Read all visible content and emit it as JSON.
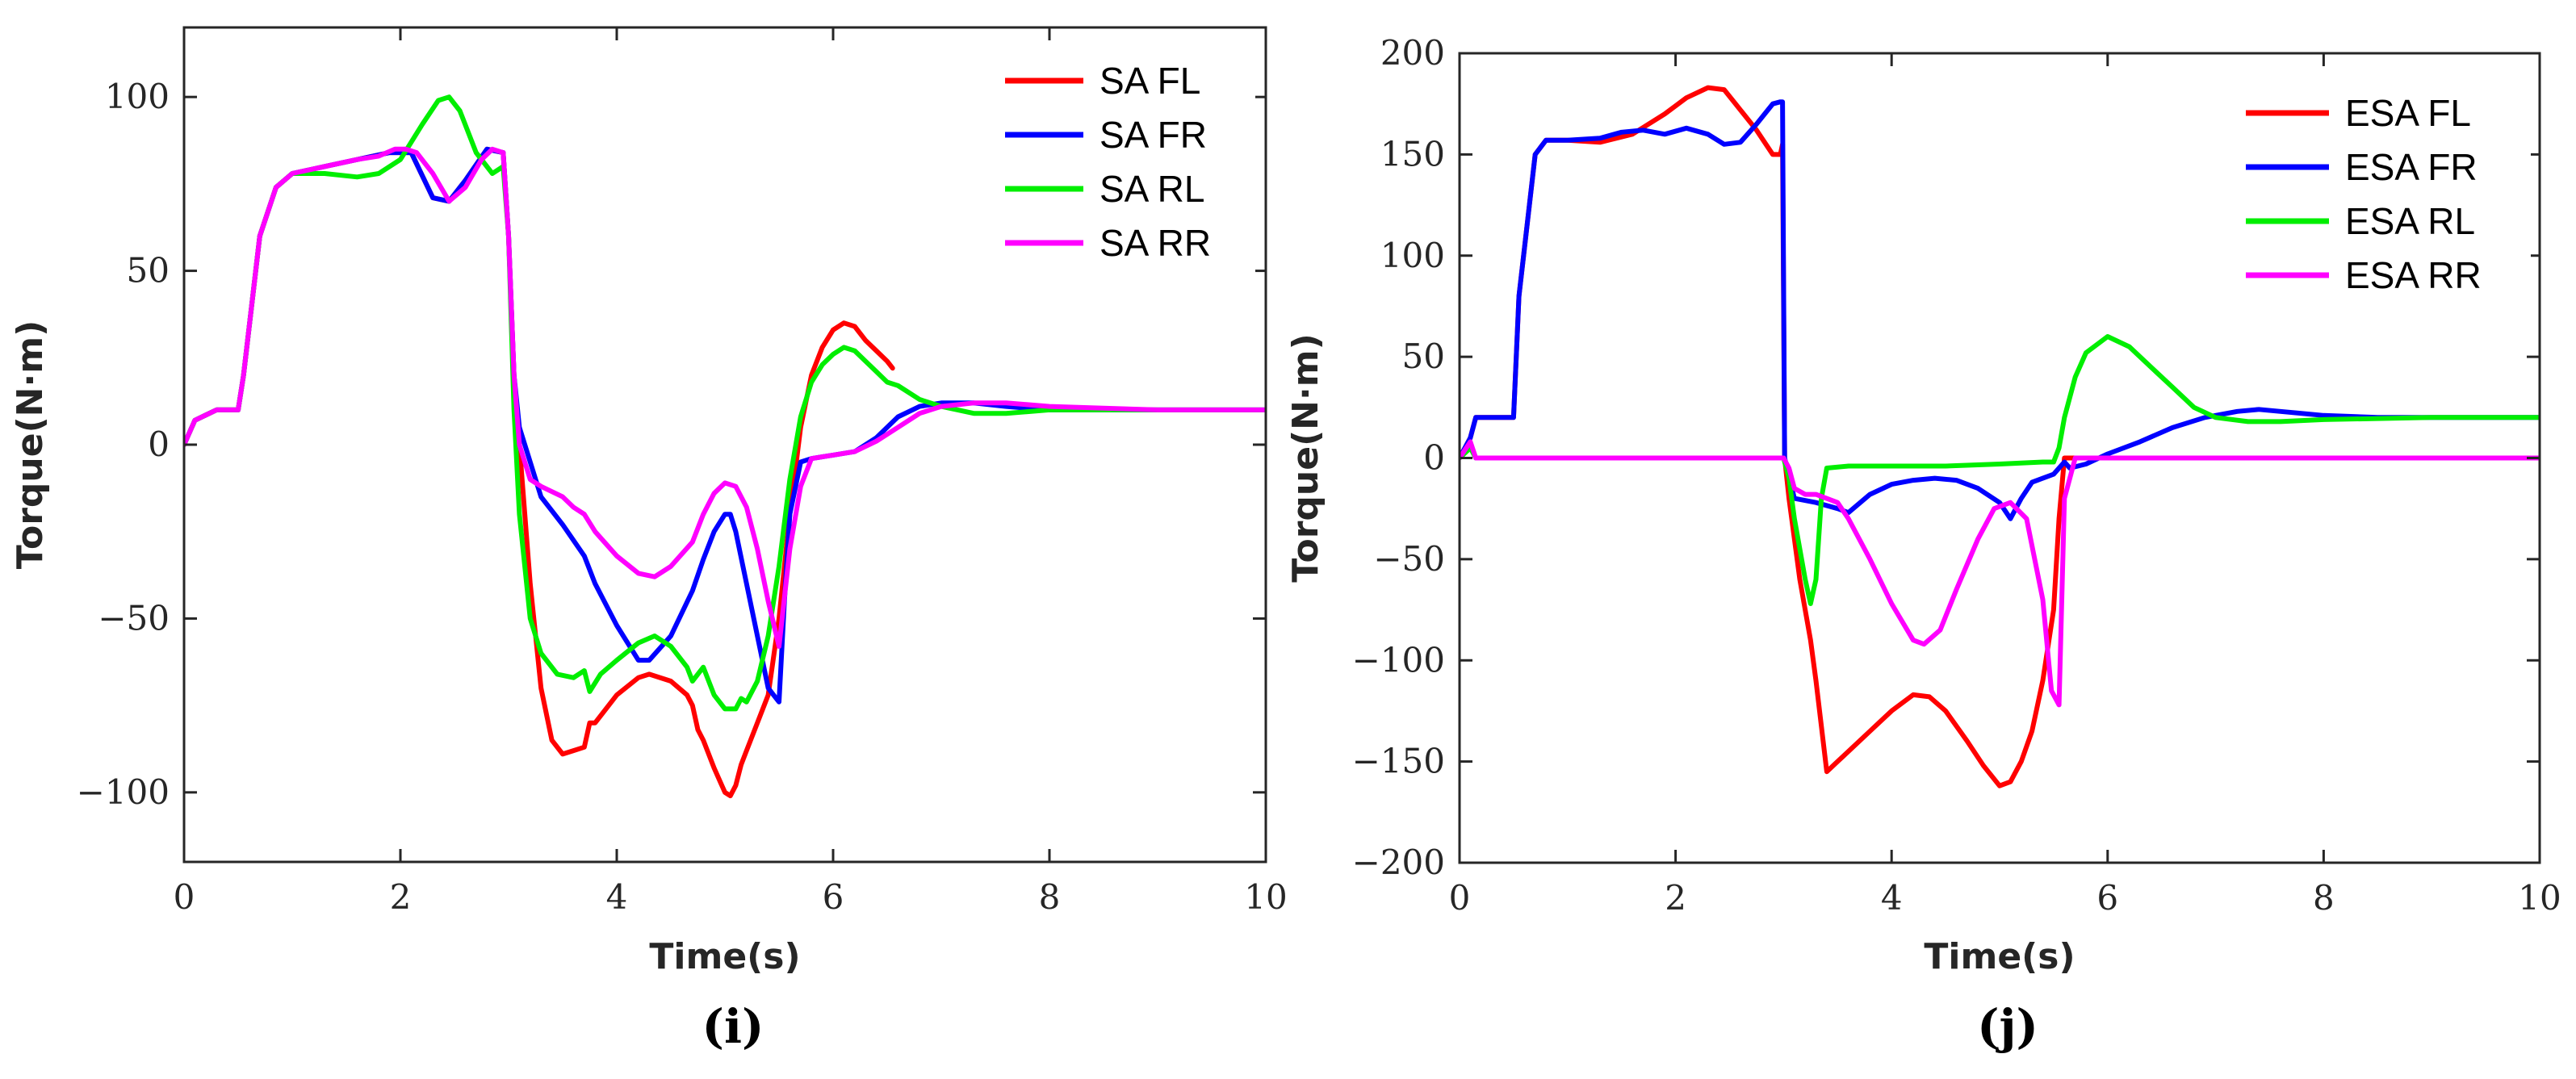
{
  "chart_data": [
    {
      "type": "line",
      "panel_label": "(i)",
      "xlabel": "Time(s)",
      "ylabel": "Torque(N·m)",
      "xlim": [
        0,
        10
      ],
      "ylim": [
        -120,
        120
      ],
      "xticks": [
        0,
        2,
        4,
        6,
        8,
        10
      ],
      "xtick_labels": [
        "0",
        "2",
        "4",
        "6",
        "8",
        "10"
      ],
      "yticks": [
        -100,
        -50,
        0,
        50,
        100
      ],
      "ytick_labels": [
        "−100",
        "−50",
        "0",
        "50",
        "100"
      ],
      "grid": false,
      "legend_position": "top-right",
      "series": [
        {
          "name": "SA FL",
          "color": "#ff0000",
          "x": [
            0,
            0.1,
            0.3,
            0.5,
            0.55,
            0.7,
            0.85,
            1.0,
            1.3,
            1.6,
            1.9,
            2.1,
            2.3,
            2.45,
            2.6,
            2.8,
            2.95,
            3.0,
            3.05,
            3.1,
            3.2,
            3.3,
            3.4,
            3.5,
            3.6,
            3.7,
            3.75,
            3.8,
            4.0,
            4.2,
            4.3,
            4.5,
            4.65,
            4.7,
            4.75,
            4.8,
            4.9,
            5.0,
            5.05,
            5.1,
            5.15,
            5.2,
            5.3,
            5.4,
            5.5,
            5.6,
            5.7,
            5.8,
            5.9,
            6.0,
            6.1,
            6.2,
            6.3,
            6.4,
            6.5,
            6.55
          ],
          "y": [
            0,
            7,
            10,
            10,
            20,
            60,
            74,
            78,
            80,
            82,
            84,
            84,
            71,
            70,
            76,
            85,
            84,
            60,
            20,
            0,
            -40,
            -70,
            -85,
            -89,
            -88,
            -87,
            -80,
            -80,
            -72,
            -67,
            -66,
            -68,
            -72,
            -75,
            -82,
            -85,
            -93,
            -100,
            -101,
            -98,
            -92,
            -88,
            -80,
            -72,
            -50,
            -20,
            5,
            20,
            28,
            33,
            35,
            34,
            30,
            27,
            24,
            22
          ]
        },
        {
          "name": "SA FR",
          "color": "#0000ff",
          "x": [
            0,
            0.1,
            0.3,
            0.5,
            0.55,
            0.7,
            0.85,
            1.0,
            1.3,
            1.6,
            1.9,
            2.1,
            2.3,
            2.45,
            2.6,
            2.8,
            2.95,
            3.0,
            3.05,
            3.1,
            3.2,
            3.3,
            3.5,
            3.7,
            3.8,
            4.0,
            4.2,
            4.3,
            4.5,
            4.7,
            4.8,
            4.9,
            5.0,
            5.05,
            5.1,
            5.2,
            5.3,
            5.4,
            5.5,
            5.55,
            5.6,
            5.7,
            5.8,
            6.0,
            6.2,
            6.4,
            6.6,
            6.8,
            7.0,
            7.3,
            7.6,
            8.0,
            9.0,
            10.0
          ],
          "y": [
            0,
            7,
            10,
            10,
            20,
            60,
            74,
            78,
            80,
            82,
            84,
            84,
            71,
            70,
            76,
            85,
            84,
            60,
            20,
            5,
            -5,
            -15,
            -23,
            -32,
            -40,
            -52,
            -62,
            -62,
            -55,
            -42,
            -33,
            -25,
            -20,
            -20,
            -25,
            -40,
            -55,
            -70,
            -74,
            -45,
            -20,
            -5,
            -4,
            -3,
            -2,
            2,
            8,
            11,
            12,
            12,
            11,
            10,
            10,
            10
          ]
        },
        {
          "name": "SA RL",
          "color": "#00ee00",
          "x": [
            0,
            0.1,
            0.3,
            0.5,
            0.55,
            0.7,
            0.85,
            1.0,
            1.3,
            1.6,
            1.8,
            2.0,
            2.2,
            2.35,
            2.45,
            2.55,
            2.7,
            2.85,
            2.95,
            3.0,
            3.05,
            3.1,
            3.2,
            3.3,
            3.45,
            3.6,
            3.7,
            3.75,
            3.85,
            4.0,
            4.2,
            4.35,
            4.5,
            4.65,
            4.7,
            4.8,
            4.9,
            5.0,
            5.1,
            5.15,
            5.2,
            5.3,
            5.4,
            5.5,
            5.6,
            5.7,
            5.8,
            5.9,
            6.0,
            6.1,
            6.2,
            6.3,
            6.4,
            6.5,
            6.6,
            6.8,
            7.0,
            7.3,
            7.6,
            8.0,
            8.5,
            9.0,
            10.0
          ],
          "y": [
            0,
            7,
            10,
            10,
            20,
            60,
            74,
            78,
            78,
            77,
            78,
            82,
            92,
            99,
            100,
            96,
            84,
            78,
            80,
            60,
            10,
            -20,
            -50,
            -60,
            -66,
            -67,
            -65,
            -71,
            -66,
            -62,
            -57,
            -55,
            -58,
            -64,
            -68,
            -64,
            -72,
            -76,
            -76,
            -73,
            -74,
            -68,
            -55,
            -35,
            -10,
            8,
            18,
            23,
            26,
            28,
            27,
            24,
            21,
            18,
            17,
            13,
            11,
            9,
            9,
            10,
            10,
            10,
            10
          ]
        },
        {
          "name": "SA RR",
          "color": "#ff00ff",
          "x": [
            0,
            0.1,
            0.3,
            0.5,
            0.55,
            0.7,
            0.85,
            1.0,
            1.3,
            1.6,
            1.8,
            1.95,
            2.05,
            2.15,
            2.3,
            2.45,
            2.6,
            2.75,
            2.85,
            2.95,
            3.0,
            3.05,
            3.1,
            3.2,
            3.3,
            3.5,
            3.6,
            3.7,
            3.8,
            4.0,
            4.2,
            4.35,
            4.5,
            4.7,
            4.8,
            4.9,
            5.0,
            5.1,
            5.2,
            5.3,
            5.4,
            5.5,
            5.6,
            5.7,
            5.8,
            6.0,
            6.2,
            6.4,
            6.6,
            6.8,
            7.0,
            7.3,
            7.6,
            8.0,
            9.0,
            10.0
          ],
          "y": [
            0,
            7,
            10,
            10,
            20,
            60,
            74,
            78,
            80,
            82,
            83,
            85,
            85,
            84,
            78,
            70,
            74,
            82,
            85,
            84,
            60,
            20,
            0,
            -10,
            -12,
            -15,
            -18,
            -20,
            -25,
            -32,
            -37,
            -38,
            -35,
            -28,
            -20,
            -14,
            -11,
            -12,
            -18,
            -30,
            -45,
            -58,
            -30,
            -12,
            -4,
            -3,
            -2,
            1,
            5,
            9,
            11,
            12,
            12,
            11,
            10,
            10
          ]
        }
      ]
    },
    {
      "type": "line",
      "panel_label": "(j)",
      "xlabel": "Time(s)",
      "ylabel": "Torque(N·m)",
      "xlim": [
        0,
        10
      ],
      "ylim": [
        -200,
        200
      ],
      "xticks": [
        0,
        2,
        4,
        6,
        8,
        10
      ],
      "xtick_labels": [
        "0",
        "2",
        "4",
        "6",
        "8",
        "10"
      ],
      "yticks": [
        -200,
        -150,
        -100,
        -50,
        0,
        50,
        100,
        150,
        200
      ],
      "ytick_labels": [
        "−200",
        "−150",
        "−100",
        "−50",
        "0",
        "50",
        "100",
        "150",
        "200"
      ],
      "grid": false,
      "legend_position": "top-right",
      "series": [
        {
          "name": "ESA FL",
          "color": "#ff0000",
          "x": [
            0,
            0.1,
            0.15,
            0.5,
            0.55,
            0.7,
            0.8,
            1.0,
            1.3,
            1.6,
            1.9,
            2.1,
            2.3,
            2.45,
            2.6,
            2.75,
            2.9,
            2.97,
            2.99,
            3.01,
            3.05,
            3.15,
            3.25,
            3.3,
            3.4,
            3.5,
            3.6,
            3.8,
            4.0,
            4.2,
            4.35,
            4.5,
            4.7,
            4.85,
            5.0,
            5.1,
            5.2,
            5.3,
            5.4,
            5.5,
            5.55,
            5.6,
            5.8,
            6.0,
            7.0,
            8.0,
            10.0
          ],
          "y": [
            0,
            10,
            20,
            20,
            80,
            150,
            157,
            157,
            156,
            160,
            170,
            178,
            183,
            182,
            172,
            162,
            150,
            150,
            155,
            0,
            -20,
            -60,
            -90,
            -110,
            -155,
            -150,
            -145,
            -135,
            -125,
            -117,
            -118,
            -125,
            -140,
            -152,
            -162,
            -160,
            -150,
            -135,
            -110,
            -75,
            -30,
            0,
            0,
            0,
            0,
            0,
            0
          ]
        },
        {
          "name": "ESA FR",
          "color": "#0000ff",
          "x": [
            0,
            0.1,
            0.15,
            0.5,
            0.55,
            0.7,
            0.8,
            1.0,
            1.3,
            1.5,
            1.7,
            1.9,
            2.1,
            2.3,
            2.45,
            2.6,
            2.75,
            2.9,
            2.97,
            2.99,
            3.01,
            3.1,
            3.3,
            3.5,
            3.6,
            3.8,
            4.0,
            4.2,
            4.4,
            4.6,
            4.8,
            5.0,
            5.1,
            5.2,
            5.3,
            5.4,
            5.5,
            5.55,
            5.6,
            5.65,
            5.8,
            6.0,
            6.3,
            6.6,
            6.9,
            7.2,
            7.4,
            7.6,
            8.0,
            8.5,
            9.0,
            10.0
          ],
          "y": [
            0,
            10,
            20,
            20,
            80,
            150,
            157,
            157,
            158,
            161,
            162,
            160,
            163,
            160,
            155,
            156,
            165,
            175,
            176,
            176,
            0,
            -20,
            -22,
            -25,
            -27,
            -18,
            -13,
            -11,
            -10,
            -11,
            -15,
            -22,
            -30,
            -20,
            -12,
            -10,
            -8,
            -5,
            -2,
            -5,
            -3,
            2,
            8,
            15,
            20,
            23,
            24,
            23,
            21,
            20,
            20,
            20
          ]
        },
        {
          "name": "ESA RL",
          "color": "#00ee00",
          "x": [
            0,
            0.1,
            0.15,
            0.5,
            1.0,
            2.0,
            3.0,
            3.05,
            3.1,
            3.2,
            3.25,
            3.3,
            3.35,
            3.4,
            3.6,
            4.0,
            4.5,
            5.0,
            5.4,
            5.5,
            5.55,
            5.6,
            5.7,
            5.8,
            6.0,
            6.2,
            6.4,
            6.6,
            6.8,
            7.0,
            7.3,
            7.6,
            8.0,
            9.0,
            10.0
          ],
          "y": [
            0,
            5,
            0,
            0,
            0,
            0,
            0,
            -10,
            -30,
            -60,
            -72,
            -60,
            -20,
            -5,
            -4,
            -4,
            -4,
            -3,
            -2,
            -2,
            5,
            20,
            40,
            52,
            60,
            55,
            45,
            35,
            25,
            20,
            18,
            18,
            19,
            20,
            20
          ]
        },
        {
          "name": "ESA RR",
          "color": "#ff00ff",
          "x": [
            0,
            0.1,
            0.15,
            0.5,
            1.0,
            2.0,
            3.0,
            3.05,
            3.1,
            3.2,
            3.3,
            3.5,
            3.6,
            3.8,
            4.0,
            4.2,
            4.3,
            4.45,
            4.6,
            4.8,
            4.95,
            5.1,
            5.25,
            5.4,
            5.48,
            5.55,
            5.6,
            5.7,
            6.0,
            7.0,
            8.0,
            10.0
          ],
          "y": [
            0,
            8,
            0,
            0,
            0,
            0,
            0,
            -5,
            -15,
            -18,
            -18,
            -22,
            -30,
            -50,
            -72,
            -90,
            -92,
            -85,
            -65,
            -40,
            -25,
            -22,
            -30,
            -70,
            -115,
            -122,
            -20,
            0,
            0,
            0,
            0,
            0
          ]
        }
      ]
    }
  ]
}
